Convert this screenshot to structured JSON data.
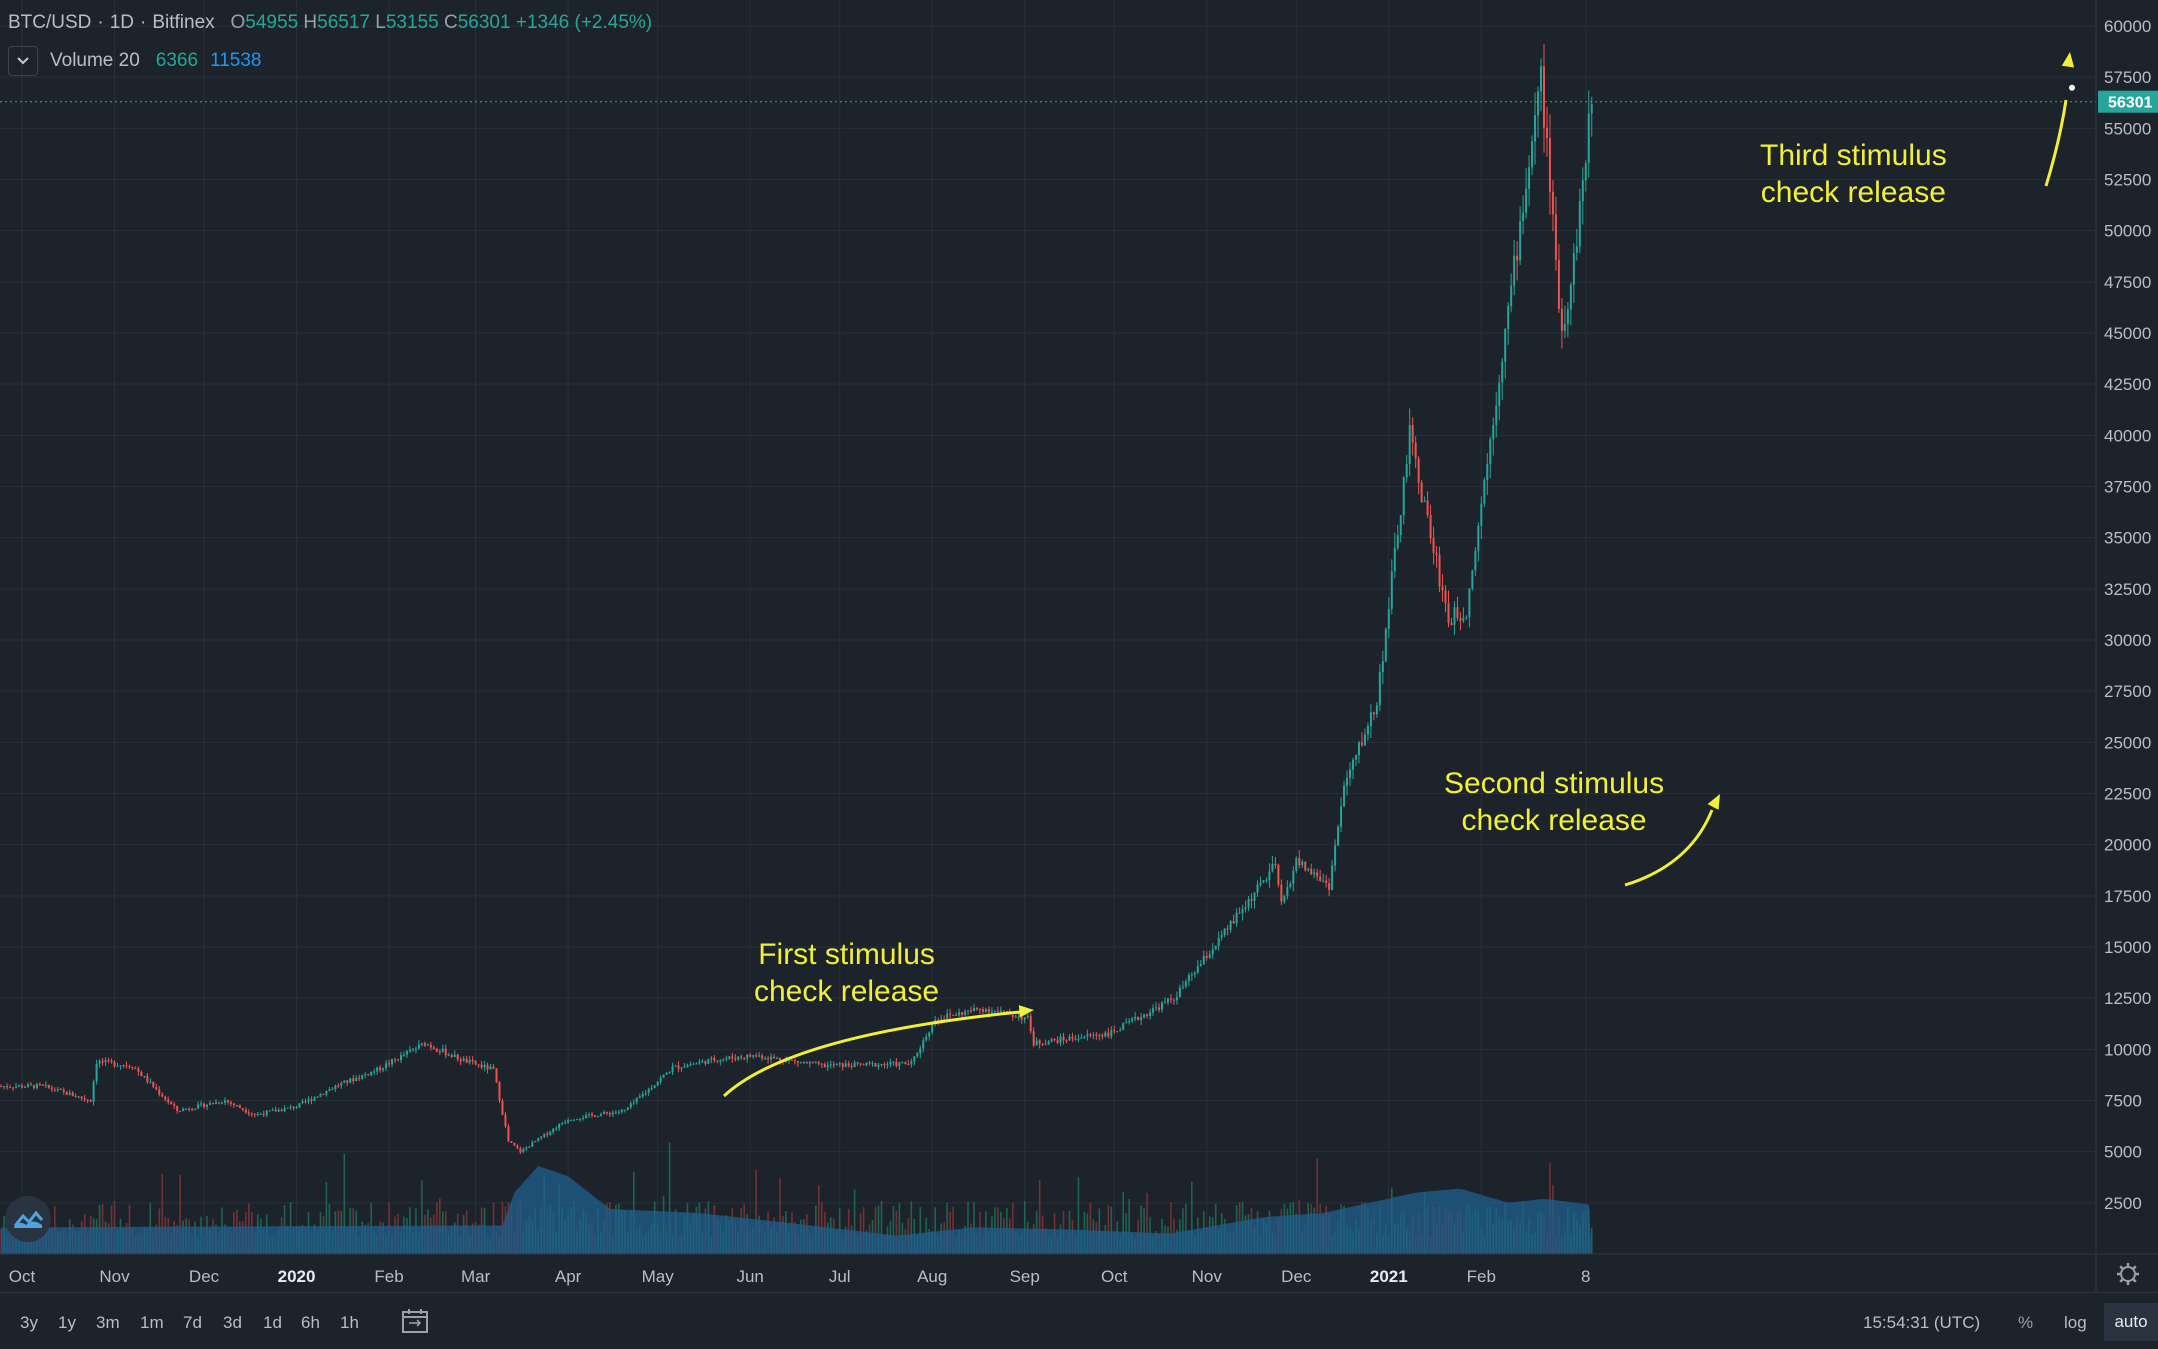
{
  "header": {
    "symbol": "BTC/USD",
    "interval": "1D",
    "exchange": "Bitfinex",
    "open_label": "O",
    "open": "54955",
    "high_label": "H",
    "high": "56517",
    "low_label": "L",
    "low": "53155",
    "close_label": "C",
    "close": "56301",
    "change": "+1346 (+2.45%)"
  },
  "volume_legend": {
    "name": "Volume 20",
    "value": "6366",
    "ma": "11538"
  },
  "price_tag": "56301",
  "annotations": [
    {
      "line1": "First stimulus",
      "line2": "check release"
    },
    {
      "line1": "Second stimulus",
      "line2": "check release"
    },
    {
      "line1": "Third stimulus",
      "line2": "check release"
    }
  ],
  "bottom_bar": {
    "ranges": [
      "3y",
      "1y",
      "3m",
      "1m",
      "7d",
      "3d",
      "1d",
      "6h",
      "1h"
    ],
    "time": "15:54:31 (UTC)",
    "percent": "%",
    "log": "log",
    "auto": "auto"
  },
  "colors": {
    "up": "#26a69a",
    "down": "#ef5350",
    "background": "#1c232b",
    "annotation": "#f2ef3a",
    "volume_ma": "#1f5f8e"
  },
  "chart_data": {
    "type": "candlestick",
    "title": "BTC/USD",
    "ylim": [
      0,
      61000
    ],
    "yticks": [
      2500,
      5000,
      7500,
      10000,
      12500,
      15000,
      17500,
      20000,
      22500,
      25000,
      27500,
      30000,
      32500,
      35000,
      37500,
      40000,
      42500,
      45000,
      47500,
      50000,
      52500,
      55000,
      57500,
      60000
    ],
    "xticks": [
      {
        "label": "Oct",
        "date": "2019-10-01"
      },
      {
        "label": "Nov",
        "date": "2019-11-01"
      },
      {
        "label": "Dec",
        "date": "2019-12-01"
      },
      {
        "label": "2020",
        "date": "2020-01-01"
      },
      {
        "label": "Feb",
        "date": "2020-02-01"
      },
      {
        "label": "Mar",
        "date": "2020-03-01"
      },
      {
        "label": "Apr",
        "date": "2020-04-01"
      },
      {
        "label": "May",
        "date": "2020-05-01"
      },
      {
        "label": "Jun",
        "date": "2020-06-01"
      },
      {
        "label": "Jul",
        "date": "2020-07-01"
      },
      {
        "label": "Aug",
        "date": "2020-08-01"
      },
      {
        "label": "Sep",
        "date": "2020-09-01"
      },
      {
        "label": "Oct",
        "date": "2020-10-01"
      },
      {
        "label": "Nov",
        "date": "2020-11-01"
      },
      {
        "label": "Dec",
        "date": "2020-12-01"
      },
      {
        "label": "2021",
        "date": "2021-01-01"
      },
      {
        "label": "Feb",
        "date": "2021-02-01"
      },
      {
        "label": "8",
        "date": "2021-03-08"
      }
    ],
    "price_path": [
      [
        "2019-09-24",
        8200
      ],
      [
        "2019-10-08",
        8200
      ],
      [
        "2019-10-24",
        7500
      ],
      [
        "2019-10-26",
        9400
      ],
      [
        "2019-11-07",
        9200
      ],
      [
        "2019-11-22",
        7000
      ],
      [
        "2019-12-08",
        7500
      ],
      [
        "2019-12-18",
        6800
      ],
      [
        "2020-01-01",
        7200
      ],
      [
        "2020-01-14",
        8200
      ],
      [
        "2020-01-28",
        9000
      ],
      [
        "2020-02-13",
        10300
      ],
      [
        "2020-02-25",
        9500
      ],
      [
        "2020-03-07",
        9000
      ],
      [
        "2020-03-12",
        5500
      ],
      [
        "2020-03-16",
        5000
      ],
      [
        "2020-04-01",
        6600
      ],
      [
        "2020-04-20",
        7000
      ],
      [
        "2020-05-06",
        9100
      ],
      [
        "2020-05-20",
        9500
      ],
      [
        "2020-06-03",
        9700
      ],
      [
        "2020-06-25",
        9200
      ],
      [
        "2020-07-25",
        9300
      ],
      [
        "2020-08-02",
        11500
      ],
      [
        "2020-08-18",
        12000
      ],
      [
        "2020-09-02",
        11500
      ],
      [
        "2020-09-04",
        10300
      ],
      [
        "2020-09-30",
        10800
      ],
      [
        "2020-10-21",
        12500
      ],
      [
        "2020-11-06",
        15500
      ],
      [
        "2020-11-24",
        19000
      ],
      [
        "2020-11-26",
        17000
      ],
      [
        "2020-12-01",
        19200
      ],
      [
        "2020-12-12",
        18000
      ],
      [
        "2020-12-17",
        22800
      ],
      [
        "2020-12-28",
        27000
      ],
      [
        "2021-01-08",
        40000
      ],
      [
        "2021-01-21",
        31000
      ],
      [
        "2021-01-27",
        31500
      ],
      [
        "2021-02-08",
        44000
      ],
      [
        "2021-02-21",
        57500
      ],
      [
        "2021-02-28",
        45000
      ],
      [
        "2021-03-04",
        48500
      ],
      [
        "2021-03-10",
        56301
      ]
    ],
    "volume_ma_path": [
      [
        "2019-09-24",
        1300
      ],
      [
        "2020-03-10",
        1400
      ],
      [
        "2020-03-14",
        3000
      ],
      [
        "2020-03-22",
        4300
      ],
      [
        "2020-04-01",
        3800
      ],
      [
        "2020-04-15",
        2200
      ],
      [
        "2020-05-15",
        2000
      ],
      [
        "2020-06-15",
        1500
      ],
      [
        "2020-07-20",
        900
      ],
      [
        "2020-08-15",
        1300
      ],
      [
        "2020-09-15",
        1200
      ],
      [
        "2020-10-20",
        1000
      ],
      [
        "2020-11-20",
        1800
      ],
      [
        "2020-12-10",
        2000
      ],
      [
        "2021-01-10",
        3000
      ],
      [
        "2021-01-25",
        3200
      ],
      [
        "2021-02-10",
        2500
      ],
      [
        "2021-02-22",
        2700
      ],
      [
        "2021-03-10",
        2400
      ]
    ],
    "last_close": 56301
  }
}
